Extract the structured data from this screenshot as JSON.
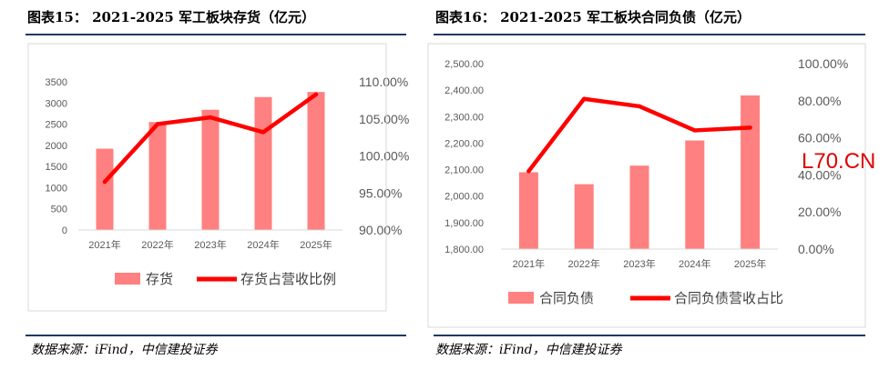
{
  "watermark": "L70.CN",
  "chart_data": [
    {
      "type": "bar",
      "title": "图表15： 2021-2025 军工板块存货（亿元）",
      "source": "数据来源：iFind，中信建投证券",
      "categories": [
        "2021年",
        "2022年",
        "2023年",
        "2024年",
        "2025年"
      ],
      "series": [
        {
          "name": "存货",
          "type": "bar",
          "axis": "left",
          "color": "#ff8080",
          "values": [
            1920,
            2550,
            2840,
            3140,
            3260
          ]
        },
        {
          "name": "存货占营收比例",
          "type": "line",
          "axis": "right",
          "color": "#ff0000",
          "values": [
            96.5,
            104.3,
            105.2,
            103.2,
            108.3
          ]
        }
      ],
      "y_left": {
        "min": 0,
        "max": 3500,
        "step": 500,
        "tick_labels": [
          "0",
          "500",
          "1000",
          "1500",
          "2000",
          "2500",
          "3000",
          "3500"
        ]
      },
      "y_right": {
        "min": 90,
        "max": 110,
        "step": 5,
        "tick_labels": [
          "90.00%",
          "95.00%",
          "100.00%",
          "105.00%",
          "110.00%"
        ]
      },
      "grid": false,
      "legend_position": "bottom"
    },
    {
      "type": "bar",
      "title": "图表16： 2021-2025 军工板块合同负债（亿元）",
      "source": "数据来源：iFind，中信建投证券",
      "categories": [
        "2021年",
        "2022年",
        "2023年",
        "2024年",
        "2025年"
      ],
      "series": [
        {
          "name": "合同负债",
          "type": "bar",
          "axis": "left",
          "color": "#ff8080",
          "values": [
            2090,
            2045,
            2115,
            2210,
            2380
          ]
        },
        {
          "name": "合同负债营收占比",
          "type": "line",
          "axis": "right",
          "color": "#ff0000",
          "values": [
            42,
            81,
            77,
            64,
            65.5
          ]
        }
      ],
      "y_left": {
        "min": 1800,
        "max": 2500,
        "step": 100,
        "tick_labels": [
          "1,800.00",
          "1,900.00",
          "2,000.00",
          "2,100.00",
          "2,200.00",
          "2,300.00",
          "2,400.00",
          "2,500.00"
        ]
      },
      "y_right": {
        "min": 0,
        "max": 100,
        "step": 20,
        "tick_labels": [
          "0.00%",
          "20.00%",
          "40.00%",
          "60.00%",
          "80.00%",
          "100.00%"
        ]
      },
      "grid": false,
      "legend_position": "bottom"
    }
  ]
}
